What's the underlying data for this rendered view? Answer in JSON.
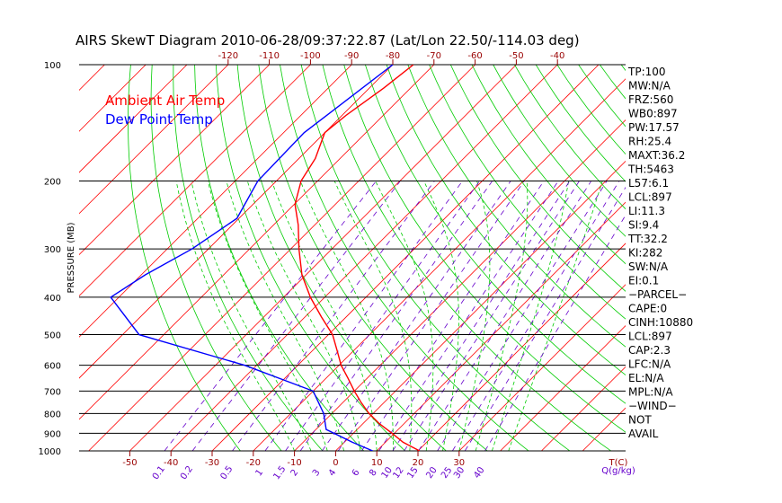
{
  "chart_data": {
    "type": "line",
    "title": "AIRS SkewT Diagram 2010-06-28/09:37:22.87 (Lat/Lon 22.50/-114.03 deg)",
    "ylabel": "PRESSURE (MB)",
    "y_scale": "log",
    "y_ticks": [
      "100",
      "200",
      "300",
      "400",
      "500",
      "600",
      "700",
      "800",
      "900",
      "1000"
    ],
    "y_tick_values": [
      100,
      200,
      300,
      400,
      500,
      600,
      700,
      800,
      900,
      1000
    ],
    "top_t_ticks": [
      "-120",
      "-110",
      "-100",
      "-90",
      "-80",
      "-70",
      "-60",
      "-50",
      "-40"
    ],
    "top_t_values": [
      -120,
      -110,
      -100,
      -90,
      -80,
      -70,
      -60,
      -50,
      -40
    ],
    "bottom_t_ticks": [
      "-50",
      "-40",
      "-30",
      "-20",
      "-10",
      "0",
      "10",
      "20",
      "30",
      "T(C)"
    ],
    "bottom_t_values": [
      -50,
      -40,
      -30,
      -20,
      -10,
      0,
      10,
      20,
      30
    ],
    "mixing_ratio_ticks": [
      "0.1",
      "0.2",
      "0.5",
      "1",
      "1.5",
      "2",
      "3",
      "4",
      "6",
      "8",
      "10",
      "12",
      "15",
      "20",
      "25",
      "30",
      "40",
      "Q(g/kg)"
    ],
    "legend": [
      {
        "label": "Ambient Air Temp",
        "color": "#ff0000"
      },
      {
        "label": "Dew Point Temp",
        "color": "#0000ff"
      }
    ],
    "series": [
      {
        "name": "Ambient Air Temp",
        "color": "#ff0000",
        "points": [
          [
            100,
            -75
          ],
          [
            115,
            -76.5
          ],
          [
            135,
            -79
          ],
          [
            150,
            -80
          ],
          [
            175,
            -76
          ],
          [
            200,
            -74
          ],
          [
            230,
            -69.8
          ],
          [
            260,
            -64
          ],
          [
            300,
            -58
          ],
          [
            350,
            -51
          ],
          [
            400,
            -43.5
          ],
          [
            450,
            -36
          ],
          [
            500,
            -29
          ],
          [
            550,
            -24
          ],
          [
            600,
            -19.5
          ],
          [
            650,
            -14.5
          ],
          [
            700,
            -10
          ],
          [
            750,
            -5.5
          ],
          [
            800,
            -1
          ],
          [
            850,
            4
          ],
          [
            900,
            9.4
          ],
          [
            950,
            14.3
          ],
          [
            1000,
            20.4
          ]
        ]
      },
      {
        "name": "Dew Point Temp",
        "color": "#0000ff",
        "points": [
          [
            100,
            -80
          ],
          [
            150,
            -85
          ],
          [
            200,
            -84.5
          ],
          [
            250,
            -80.5
          ],
          [
            300,
            -84
          ],
          [
            350,
            -89
          ],
          [
            400,
            -92
          ],
          [
            500,
            -76
          ],
          [
            600,
            -43
          ],
          [
            700,
            -20
          ],
          [
            800,
            -12
          ],
          [
            880,
            -7.5
          ],
          [
            950,
            2
          ],
          [
            1000,
            9
          ]
        ]
      }
    ],
    "indices": [
      "TP:100",
      "MW:N/A",
      "FRZ:560",
      "WB0:897",
      "PW:17.57",
      "RH:25.4",
      "MAXT:36.2",
      "TH:5463",
      "L57:6.1",
      "LCL:897",
      "LI:11.3",
      "SI:9.4",
      "TT:32.2",
      "KI:282",
      "SW:N/A",
      "EI:0.1",
      "−PARCEL−",
      "CAPE:0",
      "CINH:10880",
      "LCL:897",
      "CAP:2.3",
      "LFC:N/A",
      "EL:N/A",
      "MPL:N/A",
      "−WIND−",
      "NOT",
      "AVAIL"
    ],
    "colors": {
      "isotherm": "#ff0000",
      "dry_adiabat": "#00cc00",
      "moist_adiabat": "#00cc00",
      "mixing_ratio": "#6600cc",
      "tick_labels": "#990000",
      "isobar": "#000000",
      "title": "#000000"
    },
    "grid": true
  }
}
